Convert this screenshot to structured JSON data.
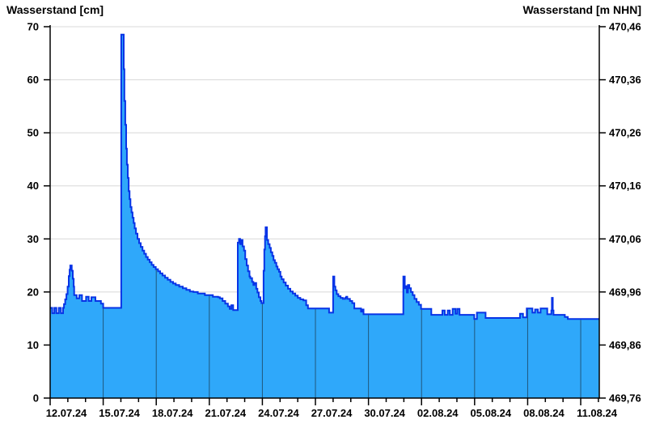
{
  "header": {
    "left_title": "Wasserstand [cm]",
    "right_title": "Wasserstand [m NHN]"
  },
  "chart_data": {
    "type": "area",
    "title": "Wasserstand",
    "left_axis_label": "Wasserstand [cm]",
    "right_axis_label": "Wasserstand [m NHN]",
    "x_tick_labels": [
      "12.07.24",
      "15.07.24",
      "18.07.24",
      "21.07.24",
      "24.07.24",
      "27.07.24",
      "30.07.24",
      "02.08.24",
      "05.08.24",
      "08.08.24",
      "11.08.24"
    ],
    "x_days_total": 31.05,
    "days_per_label": 3,
    "left_ticks_cm": [
      0,
      10,
      20,
      30,
      40,
      50,
      60,
      70
    ],
    "right_tick_labels": [
      "469,76",
      "469,86",
      "469,96",
      "470,06",
      "470,16",
      "470,26",
      "470,36",
      "470,46"
    ],
    "ylim": [
      0,
      70
    ],
    "right_axis_zero_m_nhn": "469,76",
    "grid": true,
    "legend": "none",
    "series_name": "Wasserstand [cm]",
    "series_step_points_day_cm": [
      [
        0,
        17
      ],
      [
        0.12,
        16
      ],
      [
        0.24,
        17
      ],
      [
        0.35,
        16
      ],
      [
        0.49,
        17
      ],
      [
        0.61,
        16
      ],
      [
        0.73,
        17
      ],
      [
        0.78,
        17.7
      ],
      [
        0.85,
        18.6
      ],
      [
        0.92,
        19.6
      ],
      [
        0.99,
        21
      ],
      [
        1.05,
        23
      ],
      [
        1.1,
        24.2
      ],
      [
        1.14,
        25
      ],
      [
        1.22,
        24
      ],
      [
        1.28,
        22.5
      ],
      [
        1.33,
        21
      ],
      [
        1.36,
        19.4
      ],
      [
        1.5,
        18.8
      ],
      [
        1.65,
        19.4
      ],
      [
        1.8,
        18.3
      ],
      [
        2.03,
        19.1
      ],
      [
        2.18,
        18.3
      ],
      [
        2.33,
        19
      ],
      [
        2.56,
        18.3
      ],
      [
        2.87,
        17.8
      ],
      [
        3,
        17
      ],
      [
        4.02,
        68.5
      ],
      [
        4.16,
        62
      ],
      [
        4.2,
        56
      ],
      [
        4.25,
        51.5
      ],
      [
        4.3,
        47
      ],
      [
        4.34,
        44
      ],
      [
        4.39,
        41.5
      ],
      [
        4.44,
        39
      ],
      [
        4.49,
        37.5
      ],
      [
        4.54,
        36
      ],
      [
        4.6,
        35
      ],
      [
        4.66,
        34
      ],
      [
        4.72,
        33
      ],
      [
        4.78,
        32
      ],
      [
        4.85,
        31
      ],
      [
        4.94,
        30
      ],
      [
        5.03,
        29.2
      ],
      [
        5.12,
        28.5
      ],
      [
        5.22,
        27.8
      ],
      [
        5.32,
        27.2
      ],
      [
        5.42,
        26.6
      ],
      [
        5.52,
        26.1
      ],
      [
        5.63,
        25.6
      ],
      [
        5.74,
        25.1
      ],
      [
        5.85,
        24.7
      ],
      [
        5.97,
        24.3
      ],
      [
        6.1,
        23.9
      ],
      [
        6.22,
        23.5
      ],
      [
        6.35,
        23.1
      ],
      [
        6.5,
        22.7
      ],
      [
        6.65,
        22.3
      ],
      [
        6.8,
        21.9
      ],
      [
        6.95,
        21.6
      ],
      [
        7.1,
        21.3
      ],
      [
        7.3,
        21
      ],
      [
        7.5,
        20.7
      ],
      [
        7.7,
        20.4
      ],
      [
        7.9,
        20.1
      ],
      [
        8.1,
        20
      ],
      [
        8.35,
        19.7
      ],
      [
        8.75,
        19.4
      ],
      [
        9.2,
        19.1
      ],
      [
        9.5,
        19
      ],
      [
        9.6,
        18.8
      ],
      [
        9.75,
        18.3
      ],
      [
        9.9,
        17.8
      ],
      [
        10.05,
        17.3
      ],
      [
        10.15,
        16.8
      ],
      [
        10.25,
        17.5
      ],
      [
        10.35,
        16.6
      ],
      [
        10.61,
        29.3
      ],
      [
        10.68,
        30
      ],
      [
        10.74,
        29
      ],
      [
        10.79,
        29.8
      ],
      [
        10.88,
        28.6
      ],
      [
        10.96,
        27.8
      ],
      [
        11.03,
        26.2
      ],
      [
        11.11,
        25
      ],
      [
        11.19,
        23.9
      ],
      [
        11.27,
        22.9
      ],
      [
        11.32,
        22.6
      ],
      [
        11.42,
        21.9
      ],
      [
        11.49,
        21.3
      ],
      [
        11.55,
        21.7
      ],
      [
        11.65,
        20.6
      ],
      [
        11.72,
        19.9
      ],
      [
        11.8,
        19
      ],
      [
        11.89,
        18.3
      ],
      [
        11.95,
        17.9
      ],
      [
        12.07,
        24
      ],
      [
        12.11,
        28
      ],
      [
        12.15,
        30.5
      ],
      [
        12.18,
        32.2
      ],
      [
        12.26,
        29.8
      ],
      [
        12.33,
        29
      ],
      [
        12.41,
        28.3
      ],
      [
        12.48,
        27.5
      ],
      [
        12.56,
        26.8
      ],
      [
        12.63,
        26
      ],
      [
        12.71,
        25.5
      ],
      [
        12.79,
        24.8
      ],
      [
        12.86,
        24.3
      ],
      [
        12.94,
        23.8
      ],
      [
        13.02,
        22.9
      ],
      [
        13.09,
        22.4
      ],
      [
        13.2,
        21.8
      ],
      [
        13.32,
        21.2
      ],
      [
        13.45,
        20.6
      ],
      [
        13.58,
        20.1
      ],
      [
        13.72,
        19.7
      ],
      [
        13.86,
        19.3
      ],
      [
        14,
        18.9
      ],
      [
        14.15,
        18.6
      ],
      [
        14.32,
        18.4
      ],
      [
        14.48,
        17.5
      ],
      [
        14.58,
        16.9
      ],
      [
        15.77,
        16.1
      ],
      [
        16,
        22.9
      ],
      [
        16.07,
        21
      ],
      [
        16.13,
        20.3
      ],
      [
        16.2,
        19.6
      ],
      [
        16.3,
        19.2
      ],
      [
        16.42,
        18.9
      ],
      [
        16.55,
        18.7
      ],
      [
        16.68,
        18.9
      ],
      [
        16.74,
        19.1
      ],
      [
        16.8,
        18.7
      ],
      [
        16.95,
        18.3
      ],
      [
        17.08,
        17.9
      ],
      [
        17.2,
        16.9
      ],
      [
        17.58,
        16.3
      ],
      [
        17.65,
        16.7
      ],
      [
        17.72,
        15.8
      ],
      [
        19.97,
        22.9
      ],
      [
        20.05,
        20.7
      ],
      [
        20.11,
        21.1
      ],
      [
        20.17,
        19.9
      ],
      [
        20.23,
        21.3
      ],
      [
        20.31,
        20.7
      ],
      [
        20.4,
        20
      ],
      [
        20.5,
        19.4
      ],
      [
        20.6,
        18.7
      ],
      [
        20.72,
        18.1
      ],
      [
        20.85,
        17.6
      ],
      [
        20.97,
        16.8
      ],
      [
        21.55,
        15.7
      ],
      [
        22.18,
        16.5
      ],
      [
        22.31,
        15.7
      ],
      [
        22.48,
        16.5
      ],
      [
        22.6,
        15.7
      ],
      [
        22.76,
        16.8
      ],
      [
        22.92,
        15.9
      ],
      [
        23.02,
        16.8
      ],
      [
        23.15,
        15.7
      ],
      [
        23.98,
        14.9
      ],
      [
        24.13,
        16.1
      ],
      [
        24.62,
        15.1
      ],
      [
        26.57,
        15.9
      ],
      [
        26.74,
        15.2
      ],
      [
        26.95,
        16.9
      ],
      [
        27.27,
        16.1
      ],
      [
        27.42,
        16.7
      ],
      [
        27.58,
        16.1
      ],
      [
        27.73,
        16.9
      ],
      [
        28.11,
        15.8
      ],
      [
        28.34,
        16.5
      ],
      [
        28.37,
        18.9
      ],
      [
        28.42,
        16.5
      ],
      [
        28.46,
        15.7
      ],
      [
        29.1,
        15.3
      ],
      [
        29.27,
        14.9
      ],
      [
        31.05,
        14.9
      ]
    ],
    "colors": {
      "area_fill": "#2fa8fa",
      "line": "#0733e6",
      "grid_horizontal": "#d8d8d8",
      "grid_vertical_over_fill": "rgba(20,20,20,0.55)",
      "axis": "#000000",
      "background": "#ffffff"
    }
  }
}
